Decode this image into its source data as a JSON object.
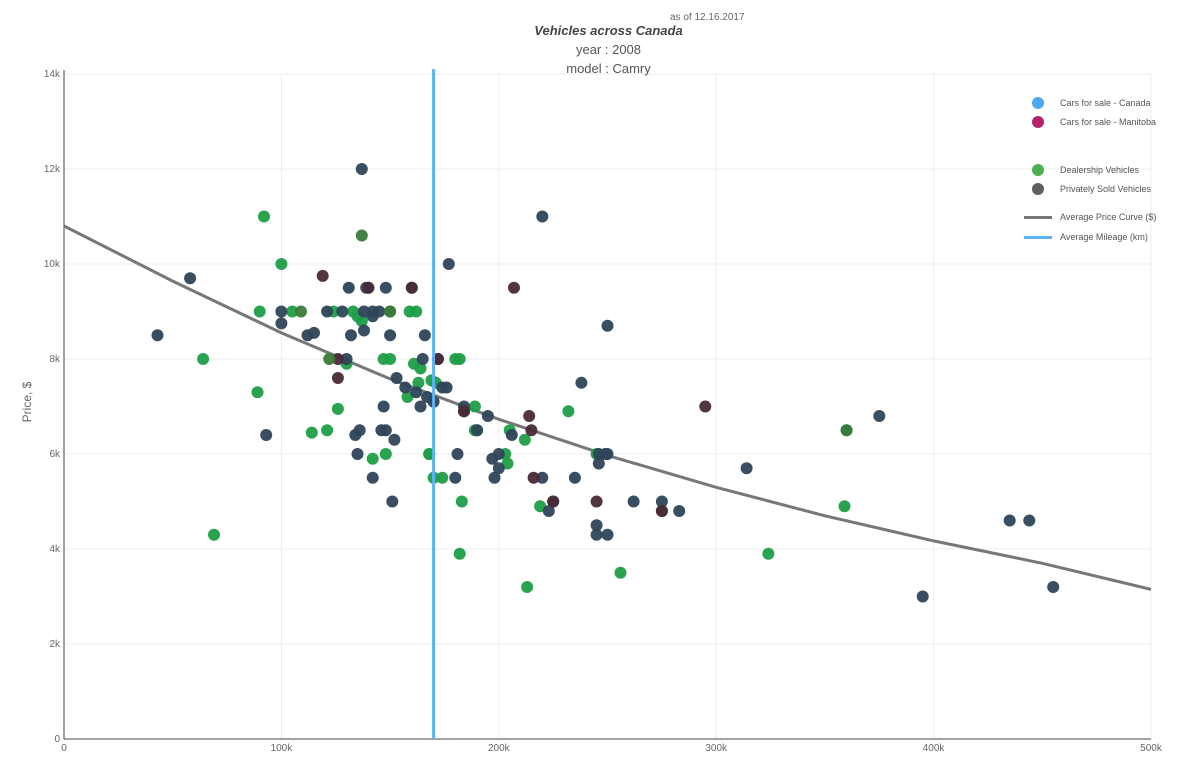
{
  "header": {
    "as_of": "as of 12.16.2017",
    "title": "Vehicles across Canada",
    "year": "year : 2008",
    "model": "model : Camry"
  },
  "legend": {
    "items": [
      {
        "label": "Cars for sale - Canada",
        "kind": "dot",
        "color": "#4aa8f0"
      },
      {
        "label": "Cars for sale - Manitoba",
        "kind": "dot",
        "color": "#b2236b"
      },
      {
        "label": "Dealership Vehicles",
        "kind": "dot",
        "color": "#4caf50"
      },
      {
        "label": "Privately Sold Vehicles",
        "kind": "dot",
        "color": "#606060"
      },
      {
        "label": "Average Price Curve ($)",
        "kind": "line",
        "color": "#777777"
      },
      {
        "label": "Average Mileage (km)",
        "kind": "line",
        "color": "#5ab4f5"
      }
    ]
  },
  "chart_data": {
    "type": "scatter",
    "ylabel": "Price, $",
    "xlabel": "",
    "xlim": [
      0,
      500000
    ],
    "ylim": [
      0,
      14000
    ],
    "x_ticks": [
      0,
      100000,
      200000,
      300000,
      400000,
      500000
    ],
    "x_tick_labels": [
      "0",
      "100k",
      "200k",
      "300k",
      "400k",
      "500k"
    ],
    "y_ticks": [
      0,
      2000,
      4000,
      6000,
      8000,
      10000,
      12000,
      14000
    ],
    "y_tick_labels": [
      "0",
      "2k",
      "4k",
      "6k",
      "8k",
      "10k",
      "12k",
      "14k"
    ],
    "grid": true,
    "colors": {
      "dealer": "#1f9e48",
      "private": "#2f4458",
      "manitoba": "#4a2a38",
      "dealer_manitoba": "#3a7a3a",
      "avg_price_curve": "#777777",
      "avg_mileage": "#5ab4f5"
    },
    "avg_mileage_km": 170000,
    "avg_price_curve": {
      "x": [
        0,
        50000,
        100000,
        150000,
        200000,
        250000,
        300000,
        350000,
        400000,
        450000,
        500000
      ],
      "y": [
        10800,
        9640,
        8550,
        7580,
        6730,
        5970,
        5300,
        4700,
        4170,
        3700,
        3150
      ]
    },
    "series": [
      {
        "name": "Dealership Vehicles",
        "color_key": "dealer",
        "points": [
          [
            92000,
            11000
          ],
          [
            100000,
            10000
          ],
          [
            90000,
            9000
          ],
          [
            64000,
            8000
          ],
          [
            89000,
            7300
          ],
          [
            69000,
            4300
          ],
          [
            105000,
            9000
          ],
          [
            114000,
            6450
          ],
          [
            121000,
            6500
          ],
          [
            126000,
            6950
          ],
          [
            124000,
            9000
          ],
          [
            130000,
            7900
          ],
          [
            133000,
            9000
          ],
          [
            135000,
            8900
          ],
          [
            137000,
            8800
          ],
          [
            140000,
            9500
          ],
          [
            142000,
            5900
          ],
          [
            147000,
            8000
          ],
          [
            148000,
            6000
          ],
          [
            150000,
            9000
          ],
          [
            150000,
            8000
          ],
          [
            158000,
            7200
          ],
          [
            159000,
            9000
          ],
          [
            161000,
            7900
          ],
          [
            162000,
            9000
          ],
          [
            163000,
            7500
          ],
          [
            164000,
            7800
          ],
          [
            168000,
            6000
          ],
          [
            169000,
            7550
          ],
          [
            170000,
            5500
          ],
          [
            171000,
            7500
          ],
          [
            174000,
            5500
          ],
          [
            180000,
            8000
          ],
          [
            182000,
            8000
          ],
          [
            182000,
            3900
          ],
          [
            183000,
            5000
          ],
          [
            189000,
            6500
          ],
          [
            189000,
            7000
          ],
          [
            190000,
            6500
          ],
          [
            203000,
            6000
          ],
          [
            204000,
            5800
          ],
          [
            205000,
            6500
          ],
          [
            212000,
            6300
          ],
          [
            213000,
            3200
          ],
          [
            219000,
            4900
          ],
          [
            232000,
            6900
          ],
          [
            245000,
            6000
          ],
          [
            256000,
            3500
          ],
          [
            324000,
            3900
          ],
          [
            359000,
            4900
          ],
          [
            360000,
            6500
          ],
          [
            168000,
            6000
          ]
        ]
      },
      {
        "name": "Privately Sold Vehicles",
        "color_key": "private",
        "points": [
          [
            43000,
            8500
          ],
          [
            58000,
            9700
          ],
          [
            93000,
            6400
          ],
          [
            100000,
            8750
          ],
          [
            100000,
            9000
          ],
          [
            112000,
            8500
          ],
          [
            115000,
            8550
          ],
          [
            121000,
            9000
          ],
          [
            128000,
            9000
          ],
          [
            131000,
            9500
          ],
          [
            132000,
            8500
          ],
          [
            134000,
            6400
          ],
          [
            135000,
            6000
          ],
          [
            136000,
            6500
          ],
          [
            137000,
            12000
          ],
          [
            138000,
            8600
          ],
          [
            138000,
            9000
          ],
          [
            139000,
            9500
          ],
          [
            142000,
            9000
          ],
          [
            142000,
            8900
          ],
          [
            142000,
            5500
          ],
          [
            145000,
            9000
          ],
          [
            146000,
            6500
          ],
          [
            147000,
            7000
          ],
          [
            148000,
            9500
          ],
          [
            150000,
            8500
          ],
          [
            151000,
            5000
          ],
          [
            152000,
            6300
          ],
          [
            153000,
            7600
          ],
          [
            157000,
            7400
          ],
          [
            160000,
            9500
          ],
          [
            162000,
            7300
          ],
          [
            164000,
            7000
          ],
          [
            165000,
            8000
          ],
          [
            166000,
            8500
          ],
          [
            167000,
            7200
          ],
          [
            170000,
            7100
          ],
          [
            172000,
            8000
          ],
          [
            174000,
            7400
          ],
          [
            177000,
            10000
          ],
          [
            180000,
            5500
          ],
          [
            181000,
            6000
          ],
          [
            184000,
            6900
          ],
          [
            184000,
            7000
          ],
          [
            190000,
            6500
          ],
          [
            195000,
            6800
          ],
          [
            197000,
            5900
          ],
          [
            198000,
            5500
          ],
          [
            200000,
            5700
          ],
          [
            200000,
            6000
          ],
          [
            206000,
            6400
          ],
          [
            220000,
            5500
          ],
          [
            220000,
            11000
          ],
          [
            223000,
            4800
          ],
          [
            225000,
            5000
          ],
          [
            235000,
            5500
          ],
          [
            238000,
            7500
          ],
          [
            245000,
            4300
          ],
          [
            245000,
            4500
          ],
          [
            246000,
            5800
          ],
          [
            246000,
            6000
          ],
          [
            249000,
            6000
          ],
          [
            250000,
            4300
          ],
          [
            250000,
            8700
          ],
          [
            250000,
            6000
          ],
          [
            262000,
            5000
          ],
          [
            275000,
            4800
          ],
          [
            275000,
            5000
          ],
          [
            283000,
            4800
          ],
          [
            314000,
            5700
          ],
          [
            375000,
            6800
          ],
          [
            395000,
            3000
          ],
          [
            435000,
            4600
          ],
          [
            444000,
            4600
          ],
          [
            455000,
            3200
          ],
          [
            130000,
            8000
          ],
          [
            148000,
            6500
          ],
          [
            176000,
            7400
          ]
        ]
      },
      {
        "name": "Cars for sale - Manitoba",
        "color_key": "manitoba",
        "points": [
          [
            119000,
            9750
          ],
          [
            126000,
            7600
          ],
          [
            126000,
            8000
          ],
          [
            184000,
            6900
          ],
          [
            207000,
            9500
          ],
          [
            214000,
            6800
          ],
          [
            215000,
            6500
          ],
          [
            216000,
            5500
          ],
          [
            225000,
            5000
          ],
          [
            295000,
            7000
          ],
          [
            245000,
            5000
          ],
          [
            275000,
            4800
          ],
          [
            140000,
            9500
          ],
          [
            160000,
            9500
          ],
          [
            172000,
            8000
          ]
        ]
      },
      {
        "name": "Dealership Vehicles - Manitoba",
        "color_key": "dealer_manitoba",
        "points": [
          [
            109000,
            9000
          ],
          [
            137000,
            10600
          ],
          [
            150000,
            9000
          ],
          [
            360000,
            6500
          ],
          [
            122000,
            8000
          ]
        ]
      }
    ]
  }
}
